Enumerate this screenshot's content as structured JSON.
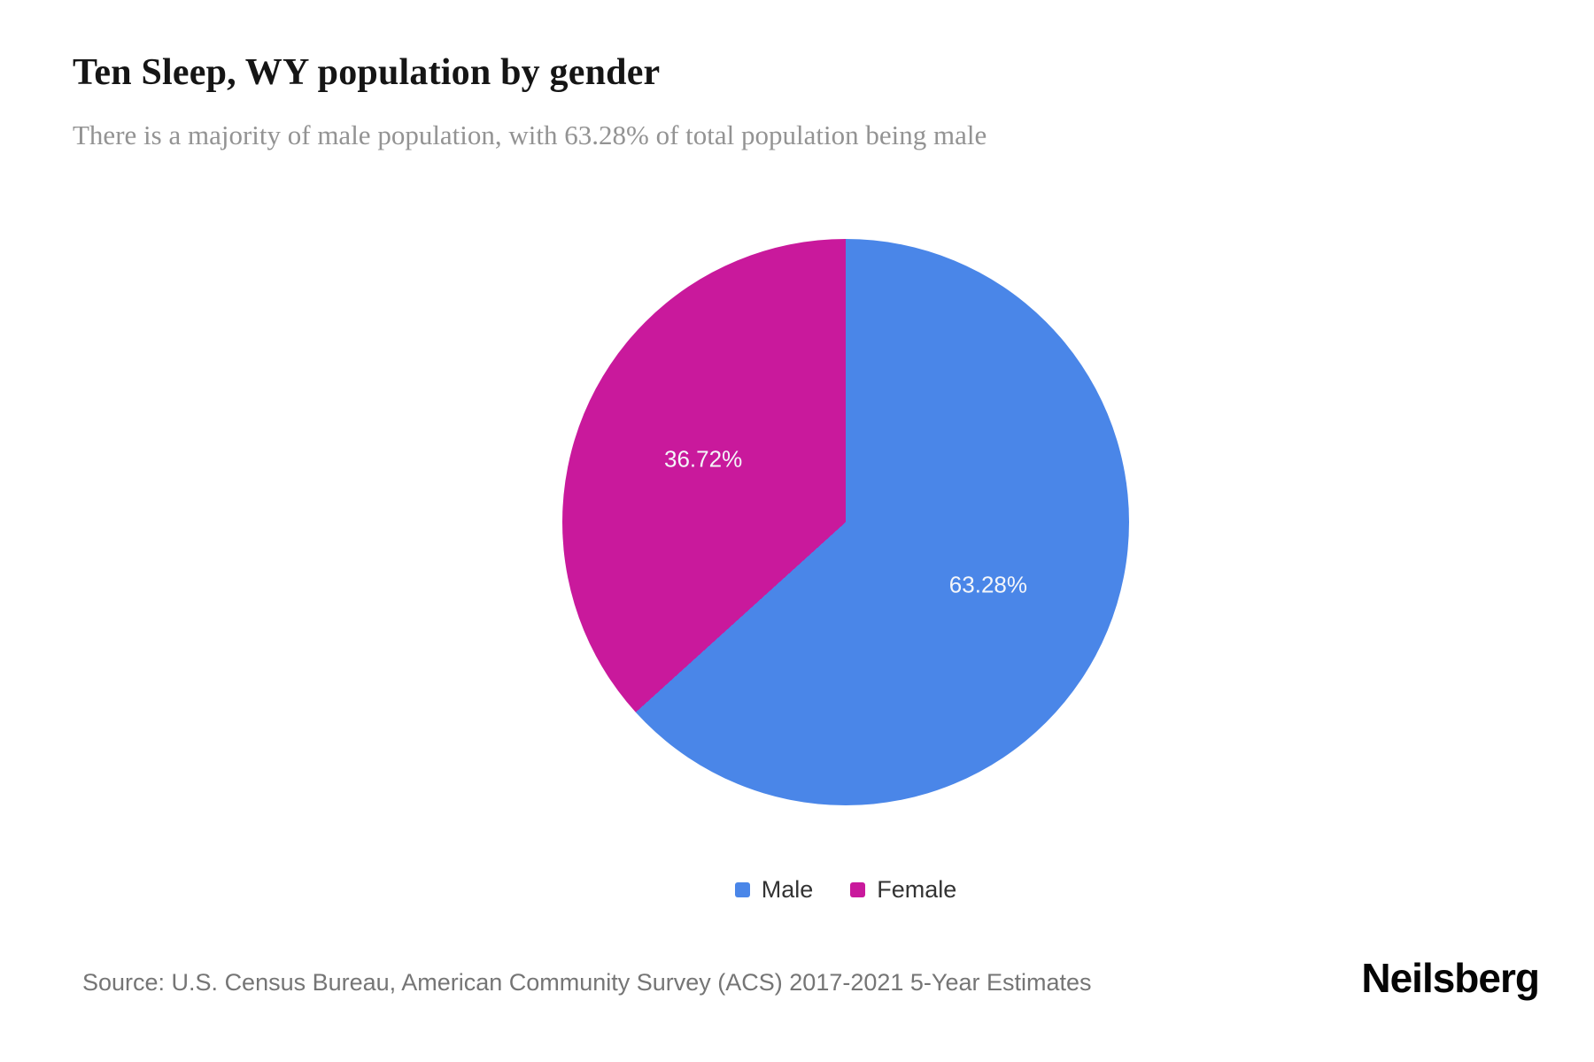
{
  "header": {
    "title": "Ten Sleep, WY population by gender",
    "subtitle": "There is a majority of male population, with 63.28% of total population being male"
  },
  "chart_data": {
    "type": "pie",
    "title": "Ten Sleep, WY population by gender",
    "labels": [
      "Male",
      "Female"
    ],
    "values": [
      63.28,
      36.72
    ],
    "value_labels": [
      "63.28%",
      "36.72%"
    ],
    "colors": [
      "#4A86E8",
      "#C9199C"
    ],
    "start_angle_deg": 0,
    "direction": "clockwise",
    "legend_position": "bottom"
  },
  "legend": {
    "items": [
      {
        "label": "Male",
        "color": "#4A86E8"
      },
      {
        "label": "Female",
        "color": "#C9199C"
      }
    ]
  },
  "footer": {
    "source": "Source: U.S. Census Bureau, American Community Survey (ACS) 2017-2021 5-Year Estimates",
    "brand": "Neilsberg"
  }
}
